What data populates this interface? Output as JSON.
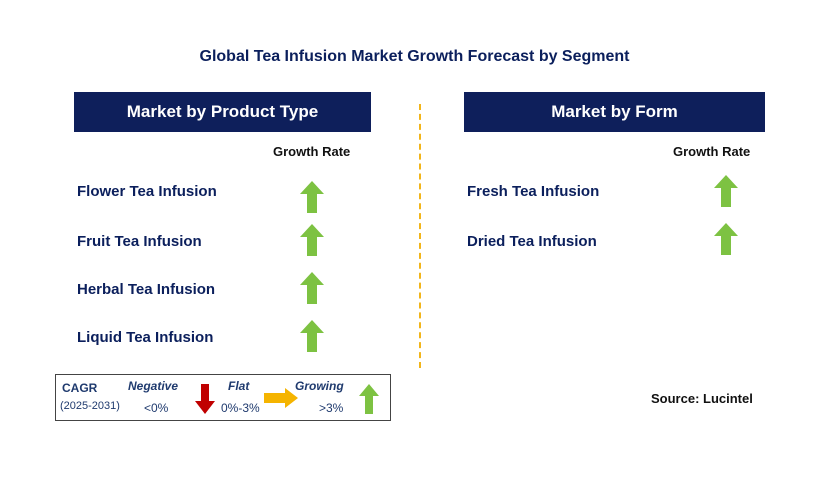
{
  "title": "Global Tea Infusion Market Growth Forecast by Segment",
  "colors": {
    "header_bg": "#0e1f5b",
    "up_arrow": "#7dc242",
    "down_arrow": "#c00000",
    "flat_arrow": "#f5b400",
    "divider": "#f2b51a"
  },
  "chart_data": [
    {
      "type": "table",
      "title": "Market by Product Type",
      "column_header": "Growth Rate",
      "rows": [
        {
          "label": "Flower Tea Infusion",
          "growth": "Growing",
          "icon": "up-arrow-icon"
        },
        {
          "label": "Fruit Tea Infusion",
          "growth": "Growing",
          "icon": "up-arrow-icon"
        },
        {
          "label": "Herbal Tea Infusion",
          "growth": "Growing",
          "icon": "up-arrow-icon"
        },
        {
          "label": "Liquid Tea Infusion",
          "growth": "Growing",
          "icon": "up-arrow-icon"
        }
      ]
    },
    {
      "type": "table",
      "title": "Market by Form",
      "column_header": "Growth Rate",
      "rows": [
        {
          "label": "Fresh Tea Infusion",
          "growth": "Growing",
          "icon": "up-arrow-icon"
        },
        {
          "label": "Dried Tea Infusion",
          "growth": "Growing",
          "icon": "up-arrow-icon"
        }
      ]
    }
  ],
  "legend": {
    "cagr_label": "CAGR",
    "period": "(2025-2031)",
    "negative_label": "Negative",
    "negative_range": "<0%",
    "flat_label": "Flat",
    "flat_range": "0%-3%",
    "growing_label": "Growing",
    "growing_range": ">3%"
  },
  "source": "Source: Lucintel"
}
